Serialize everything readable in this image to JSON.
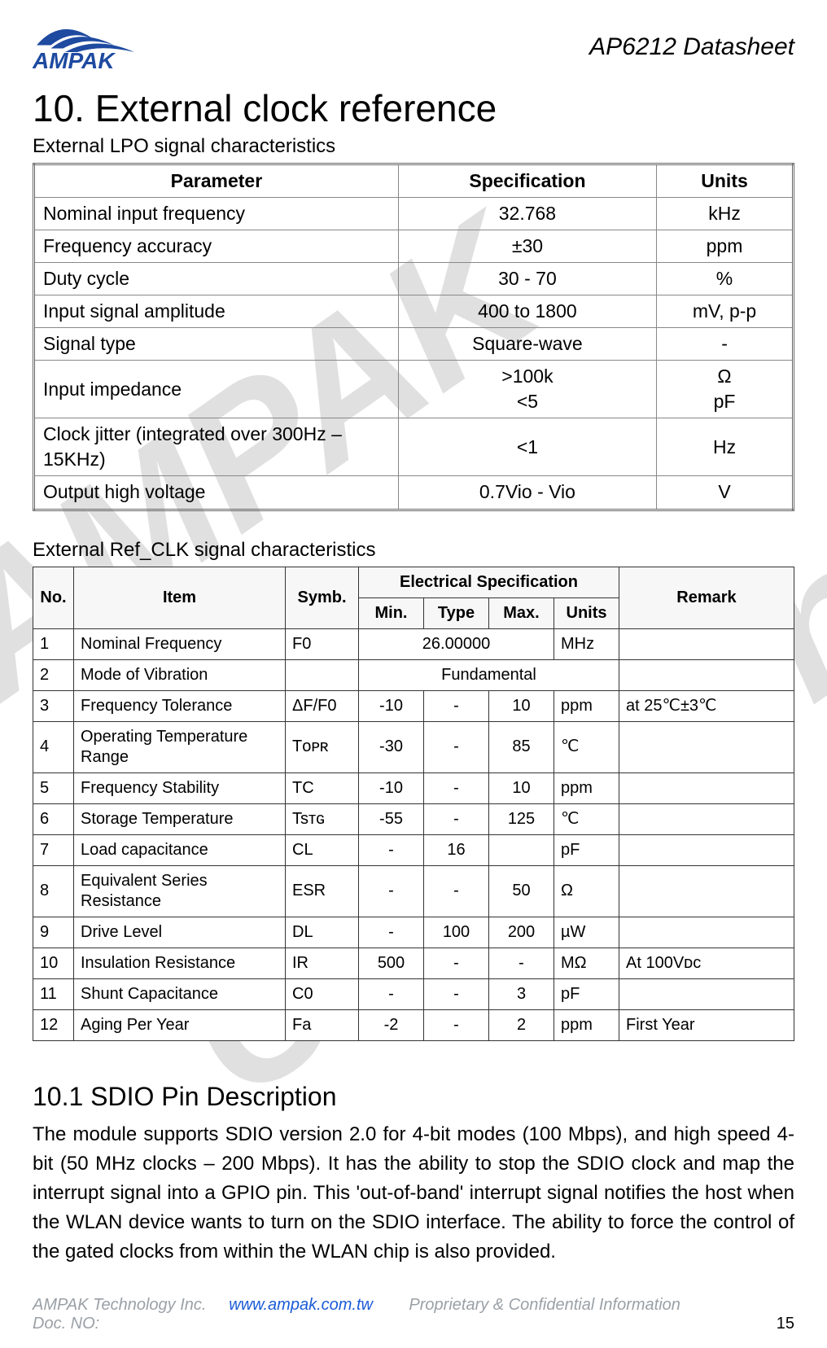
{
  "header": {
    "logo_text": "AMPAK",
    "doc_title": "AP6212  Datasheet"
  },
  "watermark": {
    "line1": "AMPAK",
    "line2": "Confidential"
  },
  "section": {
    "heading": "10.   External clock reference",
    "lpo_caption": "External LPO signal characteristics",
    "refclk_caption": "External Ref_CLK signal characteristics",
    "sub_section_heading": "10.1 SDIO Pin Description",
    "body_paragraph": "The module supports SDIO version 2.0 for 4-bit modes (100 Mbps), and high speed 4-bit (50 MHz clocks – 200 Mbps). It has the ability to stop the SDIO clock and map the interrupt signal into a GPIO pin. This 'out-of-band' interrupt signal notifies the host when the WLAN device wants to turn on the SDIO interface. The ability to force the control of the gated clocks from within the WLAN chip is also provided."
  },
  "lpo_table": {
    "headers": {
      "param": "Parameter",
      "spec": "Specification",
      "units": "Units"
    },
    "col_widths": {
      "param_pct": 48,
      "spec_pct": 34,
      "units_pct": 18
    },
    "rows": [
      {
        "param": "Nominal input frequency",
        "spec": "32.768",
        "units": "kHz"
      },
      {
        "param": "Frequency accuracy",
        "spec": "±30",
        "units": "ppm"
      },
      {
        "param": "Duty cycle",
        "spec": "30 - 70",
        "units": "%"
      },
      {
        "param": "Input signal amplitude",
        "spec": "400 to 1800",
        "units": "mV, p-p"
      },
      {
        "param": "Signal type",
        "spec": "Square-wave",
        "units": "-"
      },
      {
        "param": "Input impedance",
        "spec": ">100k\n<5",
        "units": "Ω\npF"
      },
      {
        "param": "Clock jitter (integrated over 300Hz – 15KHz)",
        "spec": "<1",
        "units": "Hz"
      },
      {
        "param": "Output high voltage",
        "spec": "0.7Vio - Vio",
        "units": "V"
      }
    ],
    "border_color": "#888888",
    "header_fontsize": 23,
    "cell_fontsize": 23
  },
  "refclk_table": {
    "headers": {
      "no": "No.",
      "item": "Item",
      "symb": "Symb.",
      "elec_span": "Electrical Specification",
      "min": "Min.",
      "typ": "Type",
      "max": "Max.",
      "units": "Units",
      "remark": "Remark"
    },
    "rows": [
      {
        "no": "1",
        "item": "Nominal Frequency",
        "symb": "F0",
        "min": "",
        "typ_span": "26.00000",
        "max": "",
        "units": "MHz",
        "remark": ""
      },
      {
        "no": "2",
        "item": "Mode of Vibration",
        "symb": "",
        "full_span": "Fundamental",
        "remark": ""
      },
      {
        "no": "3",
        "item": "Frequency Tolerance",
        "symb": "ΔF/F0",
        "min": "-10",
        "typ": "-",
        "max": "10",
        "units": "ppm",
        "remark": "at 25℃±3℃"
      },
      {
        "no": "4",
        "item": "Operating Temperature Range",
        "symb": "Tᴏᴘʀ",
        "min": "-30",
        "typ": "-",
        "max": "85",
        "units": "℃",
        "remark": ""
      },
      {
        "no": "5",
        "item": "Frequency Stability",
        "symb": "TC",
        "min": "-10",
        "typ": "-",
        "max": "10",
        "units": "ppm",
        "remark": ""
      },
      {
        "no": "6",
        "item": "Storage Temperature",
        "symb": "Tsᴛɢ",
        "min": "-55",
        "typ": "-",
        "max": "125",
        "units": "℃",
        "remark": ""
      },
      {
        "no": "7",
        "item": "Load capacitance",
        "symb": "CL",
        "min": "-",
        "typ": "16",
        "max": "",
        "units": "pF",
        "remark": ""
      },
      {
        "no": "8",
        "item": "Equivalent Series Resistance",
        "symb": "ESR",
        "min": "-",
        "typ": "-",
        "max": "50",
        "units": "Ω",
        "remark": ""
      },
      {
        "no": "9",
        "item": "Drive Level",
        "symb": "DL",
        "min": "-",
        "typ": "100",
        "max": "200",
        "units": "µW",
        "remark": ""
      },
      {
        "no": "10",
        "item": "Insulation Resistance",
        "symb": "IR",
        "min": "500",
        "typ": "-",
        "max": "-",
        "units": "MΩ",
        "remark": "At 100Vᴅᴄ"
      },
      {
        "no": "11",
        "item": "Shunt Capacitance",
        "symb": "C0",
        "min": "-",
        "typ": "-",
        "max": "3",
        "units": "pF",
        "remark": ""
      },
      {
        "no": "12",
        "item": "Aging Per Year",
        "symb": "Fa",
        "min": "-2",
        "typ": "-",
        "max": "2",
        "units": "ppm",
        "remark": "First Year"
      }
    ],
    "border_color": "#333333",
    "header_bg": "#f7f7f7",
    "header_fontsize": 20,
    "cell_fontsize": 20
  },
  "footer": {
    "company": "AMPAK Technology Inc.",
    "url": "www.ampak.com.tw",
    "note": "Proprietary & Confidential Information",
    "docno_label": "Doc. NO:",
    "page": "15"
  },
  "colors": {
    "text": "#000000",
    "background": "#ffffff",
    "footer_grey": "#9aa0a6",
    "link_blue": "#1a5bd6",
    "logo_blue": "#1e4aa0",
    "watermark": "rgba(0,0,0,0.12)"
  }
}
